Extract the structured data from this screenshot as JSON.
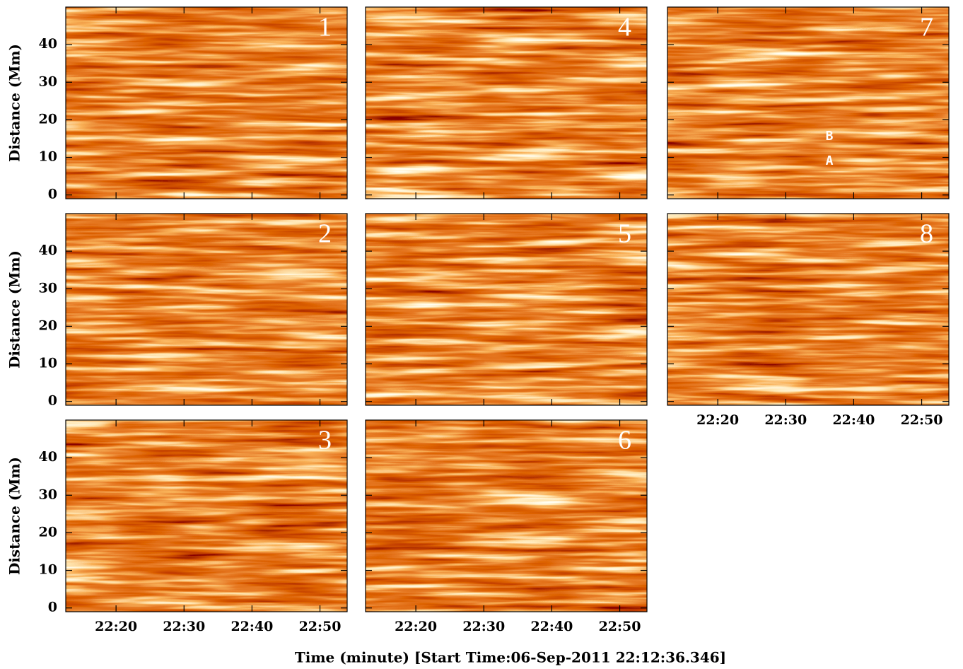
{
  "chart_data": {
    "type": "image",
    "xlabel": "Time (minute) [Start Time:06-Sep-2011 22:12:36.346]",
    "ylabel": "Distance (Mm)",
    "xlim": [
      12.6,
      54.0
    ],
    "xticks": [
      {
        "value": 20,
        "label": "22:20"
      },
      {
        "value": 30,
        "label": "22:30"
      },
      {
        "value": 40,
        "label": "22:40"
      },
      {
        "value": 50,
        "label": "22:50"
      }
    ],
    "ylim": [
      -1,
      50
    ],
    "yticks": [
      0,
      10,
      20,
      30,
      40
    ],
    "panels": [
      {
        "label": "1"
      },
      {
        "label": "2"
      },
      {
        "label": "3"
      },
      {
        "label": "4"
      },
      {
        "label": "5"
      },
      {
        "label": "6"
      },
      {
        "label": "7",
        "annotations": [
          "B",
          "A"
        ]
      },
      {
        "label": "8"
      }
    ]
  }
}
